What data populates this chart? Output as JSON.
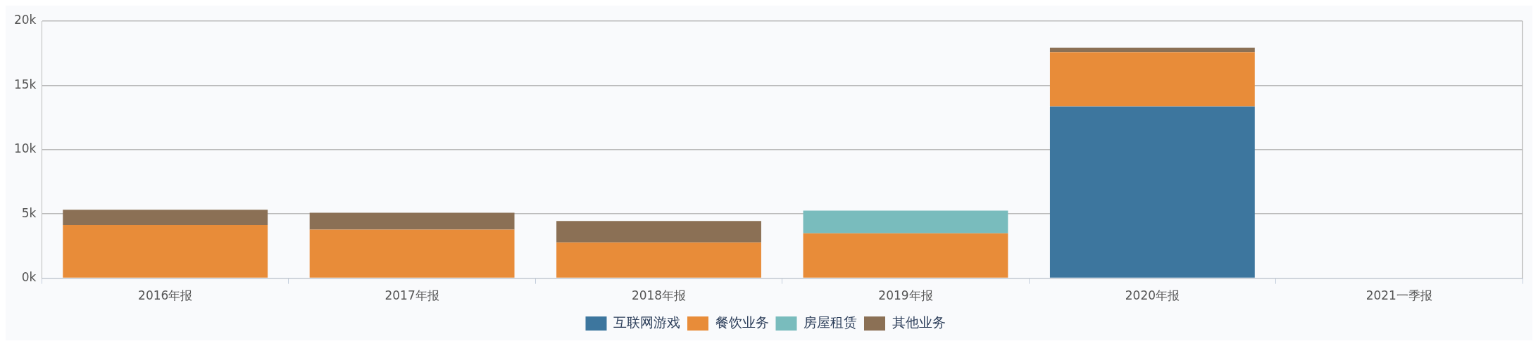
{
  "chart_data": {
    "type": "bar",
    "stacked": true,
    "categories": [
      "2016年报",
      "2017年报",
      "2018年报",
      "2019年报",
      "2020年报",
      "2021一季报"
    ],
    "series": [
      {
        "name": "互联网游戏",
        "color": "#3d769e",
        "values": [
          null,
          null,
          null,
          null,
          13.36,
          null
        ]
      },
      {
        "name": "餐饮业务",
        "color": "#e88c39",
        "values": [
          4.14,
          3.78,
          2.78,
          3.49,
          4.22,
          null
        ]
      },
      {
        "name": "房屋租赁",
        "color": "#79bcbd",
        "values": [
          null,
          null,
          null,
          1.77,
          null,
          null
        ]
      },
      {
        "name": "其他业务",
        "color": "#8b7055",
        "values": [
          1.19,
          1.31,
          1.67,
          null,
          0.35,
          null
        ]
      }
    ],
    "ylim": [
      0,
      20
    ],
    "yticks": [
      {
        "value": 0,
        "label": "0k"
      },
      {
        "value": 5,
        "label": "5k"
      },
      {
        "value": 10,
        "label": "10k"
      },
      {
        "value": 15,
        "label": "15k"
      },
      {
        "value": 20,
        "label": "20k"
      }
    ],
    "grid": "y",
    "legend": "bottom"
  }
}
